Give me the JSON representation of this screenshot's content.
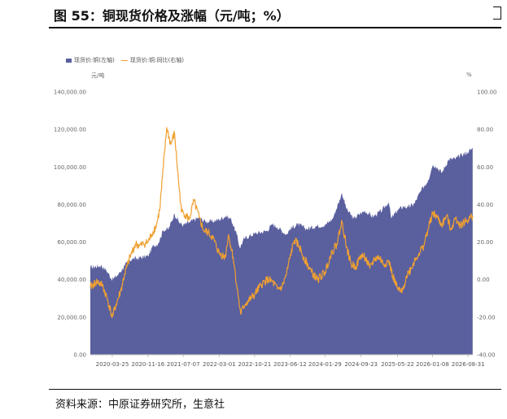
{
  "header": {
    "title": "图 55：铜现货价格及涨幅（元/吨；%）"
  },
  "footer": {
    "source": "资料来源：中原证券研究所，生意社"
  },
  "chart_data": {
    "type": "area",
    "left_unit": "元/吨",
    "right_unit": "%",
    "legend_position": "top-left",
    "grid": false,
    "x_ticks": [
      "2020-03-25",
      "2020-11-16",
      "2021-07-07",
      "2022-03-01",
      "2022-10-21",
      "2023-06-12",
      "2024-01-29",
      "2024-09-23",
      "2025-05-22",
      "2026-01-08",
      "2026-08-31"
    ],
    "y_left": {
      "ticks": [
        "0.00",
        "20,000.00",
        "40,000.00",
        "60,000.00",
        "80,000.00",
        "100,000.00",
        "120,000.00",
        "140,000.00"
      ],
      "lim": [
        0,
        140000
      ]
    },
    "y_right": {
      "ticks": [
        "-40.00",
        "-20.00",
        "0.00",
        "20.00",
        "40.00",
        "60.00",
        "80.00",
        "100.00"
      ],
      "lim": [
        -40,
        100
      ]
    },
    "series": [
      {
        "name": "现货价:铜(左轴)",
        "axis": "left",
        "kind": "area",
        "color": "#5a5f9e",
        "points": [
          [
            "2019-11-01",
            46500
          ],
          [
            "2020-01-10",
            47500
          ],
          [
            "2020-02-15",
            45000
          ],
          [
            "2020-03-25",
            40000
          ],
          [
            "2020-05-01",
            42500
          ],
          [
            "2020-06-15",
            47500
          ],
          [
            "2020-08-01",
            51000
          ],
          [
            "2020-09-15",
            51500
          ],
          [
            "2020-11-16",
            52500
          ],
          [
            "2020-12-20",
            58000
          ],
          [
            "2021-01-20",
            59000
          ],
          [
            "2021-02-25",
            66500
          ],
          [
            "2021-04-01",
            67000
          ],
          [
            "2021-05-10",
            75000
          ],
          [
            "2021-06-15",
            70000
          ],
          [
            "2021-07-07",
            69000
          ],
          [
            "2021-08-15",
            70500
          ],
          [
            "2021-10-15",
            73000
          ],
          [
            "2021-12-01",
            71000
          ],
          [
            "2022-01-15",
            71000
          ],
          [
            "2022-03-01",
            72000
          ],
          [
            "2022-04-15",
            74000
          ],
          [
            "2022-05-20",
            72000
          ],
          [
            "2022-06-25",
            64000
          ],
          [
            "2022-07-15",
            57000
          ],
          [
            "2022-08-15",
            62000
          ],
          [
            "2022-10-21",
            64500
          ],
          [
            "2023-01-10",
            66000
          ],
          [
            "2023-02-15",
            69500
          ],
          [
            "2023-03-20",
            68000
          ],
          [
            "2023-05-20",
            64000
          ],
          [
            "2023-06-12",
            67000
          ],
          [
            "2023-08-01",
            69500
          ],
          [
            "2023-10-01",
            67000
          ],
          [
            "2023-12-01",
            68500
          ],
          [
            "2024-01-29",
            69000
          ],
          [
            "2024-03-20",
            72500
          ],
          [
            "2024-05-20",
            86000
          ],
          [
            "2024-06-20",
            77500
          ],
          [
            "2024-08-05",
            72500
          ],
          [
            "2024-09-23",
            75500
          ],
          [
            "2024-10-20",
            76500
          ],
          [
            "2024-12-10",
            73500
          ],
          [
            "2025-02-10",
            77000
          ],
          [
            "2025-03-25",
            81500
          ],
          [
            "2025-04-10",
            72500
          ],
          [
            "2025-05-22",
            77000
          ],
          [
            "2025-06-30",
            79000
          ],
          [
            "2025-07-30",
            78500
          ],
          [
            "2025-09-10",
            80500
          ],
          [
            "2025-10-25",
            87500
          ],
          [
            "2025-12-10",
            93000
          ],
          [
            "2026-01-08",
            101000
          ],
          [
            "2026-01-30",
            100500
          ],
          [
            "2026-03-10",
            97000
          ],
          [
            "2026-04-25",
            104000
          ],
          [
            "2026-06-10",
            104500
          ],
          [
            "2026-07-20",
            106500
          ],
          [
            "2026-08-31",
            108000
          ],
          [
            "2026-09-30",
            110000
          ]
        ]
      },
      {
        "name": "现货价:铜:同比(右轴)",
        "axis": "right",
        "kind": "line",
        "color": "#f0a030",
        "points": [
          [
            "2019-11-01",
            -4
          ],
          [
            "2019-12-15",
            -1
          ],
          [
            "2020-01-20",
            -3
          ],
          [
            "2020-02-20",
            -10
          ],
          [
            "2020-03-25",
            -20
          ],
          [
            "2020-04-20",
            -13
          ],
          [
            "2020-05-20",
            -6
          ],
          [
            "2020-06-15",
            3
          ],
          [
            "2020-07-20",
            12
          ],
          [
            "2020-08-25",
            19
          ],
          [
            "2020-09-20",
            18
          ],
          [
            "2020-11-16",
            20
          ],
          [
            "2020-12-10",
            24
          ],
          [
            "2021-01-10",
            29
          ],
          [
            "2021-02-01",
            37
          ],
          [
            "2021-02-25",
            60
          ],
          [
            "2021-03-20",
            81
          ],
          [
            "2021-04-15",
            72
          ],
          [
            "2021-05-10",
            78
          ],
          [
            "2021-06-05",
            53
          ],
          [
            "2021-06-25",
            36
          ],
          [
            "2021-07-07",
            36
          ],
          [
            "2021-08-15",
            32
          ],
          [
            "2021-09-15",
            42
          ],
          [
            "2021-10-20",
            33
          ],
          [
            "2021-11-20",
            26
          ],
          [
            "2021-12-20",
            25
          ],
          [
            "2022-01-20",
            22
          ],
          [
            "2022-03-01",
            14
          ],
          [
            "2022-04-10",
            12
          ],
          [
            "2022-05-01",
            24
          ],
          [
            "2022-06-01",
            12
          ],
          [
            "2022-06-25",
            -3
          ],
          [
            "2022-07-20",
            -18
          ],
          [
            "2022-08-20",
            -13
          ],
          [
            "2022-10-21",
            -8
          ],
          [
            "2022-12-01",
            -3
          ],
          [
            "2023-01-10",
            0
          ],
          [
            "2023-02-15",
            -1
          ],
          [
            "2023-03-20",
            -5
          ],
          [
            "2023-04-20",
            -4
          ],
          [
            "2023-05-20",
            3
          ],
          [
            "2023-06-12",
            12
          ],
          [
            "2023-07-10",
            21
          ],
          [
            "2023-08-10",
            18
          ],
          [
            "2023-09-10",
            12
          ],
          [
            "2023-11-01",
            4
          ],
          [
            "2023-12-10",
            0
          ],
          [
            "2024-01-29",
            4
          ],
          [
            "2024-03-10",
            14
          ],
          [
            "2024-04-15",
            19
          ],
          [
            "2024-05-20",
            31
          ],
          [
            "2024-06-20",
            17
          ],
          [
            "2024-07-20",
            8
          ],
          [
            "2024-08-20",
            7
          ],
          [
            "2024-09-23",
            13
          ],
          [
            "2024-10-20",
            12
          ],
          [
            "2024-11-20",
            6
          ],
          [
            "2024-12-20",
            11
          ],
          [
            "2025-01-20",
            12
          ],
          [
            "2025-02-20",
            8
          ],
          [
            "2025-03-25",
            10
          ],
          [
            "2025-04-20",
            2
          ],
          [
            "2025-05-22",
            -5
          ],
          [
            "2025-06-20",
            -7
          ],
          [
            "2025-07-20",
            2
          ],
          [
            "2025-08-20",
            6
          ],
          [
            "2025-09-10",
            10
          ],
          [
            "2025-10-10",
            14
          ],
          [
            "2025-11-10",
            18
          ],
          [
            "2025-12-10",
            27
          ],
          [
            "2026-01-08",
            35
          ],
          [
            "2026-02-01",
            34
          ],
          [
            "2026-03-10",
            29
          ],
          [
            "2026-04-10",
            34
          ],
          [
            "2026-05-10",
            27
          ],
          [
            "2026-06-10",
            33
          ],
          [
            "2026-07-10",
            29
          ],
          [
            "2026-08-31",
            32
          ],
          [
            "2026-09-30",
            34
          ]
        ]
      }
    ]
  }
}
